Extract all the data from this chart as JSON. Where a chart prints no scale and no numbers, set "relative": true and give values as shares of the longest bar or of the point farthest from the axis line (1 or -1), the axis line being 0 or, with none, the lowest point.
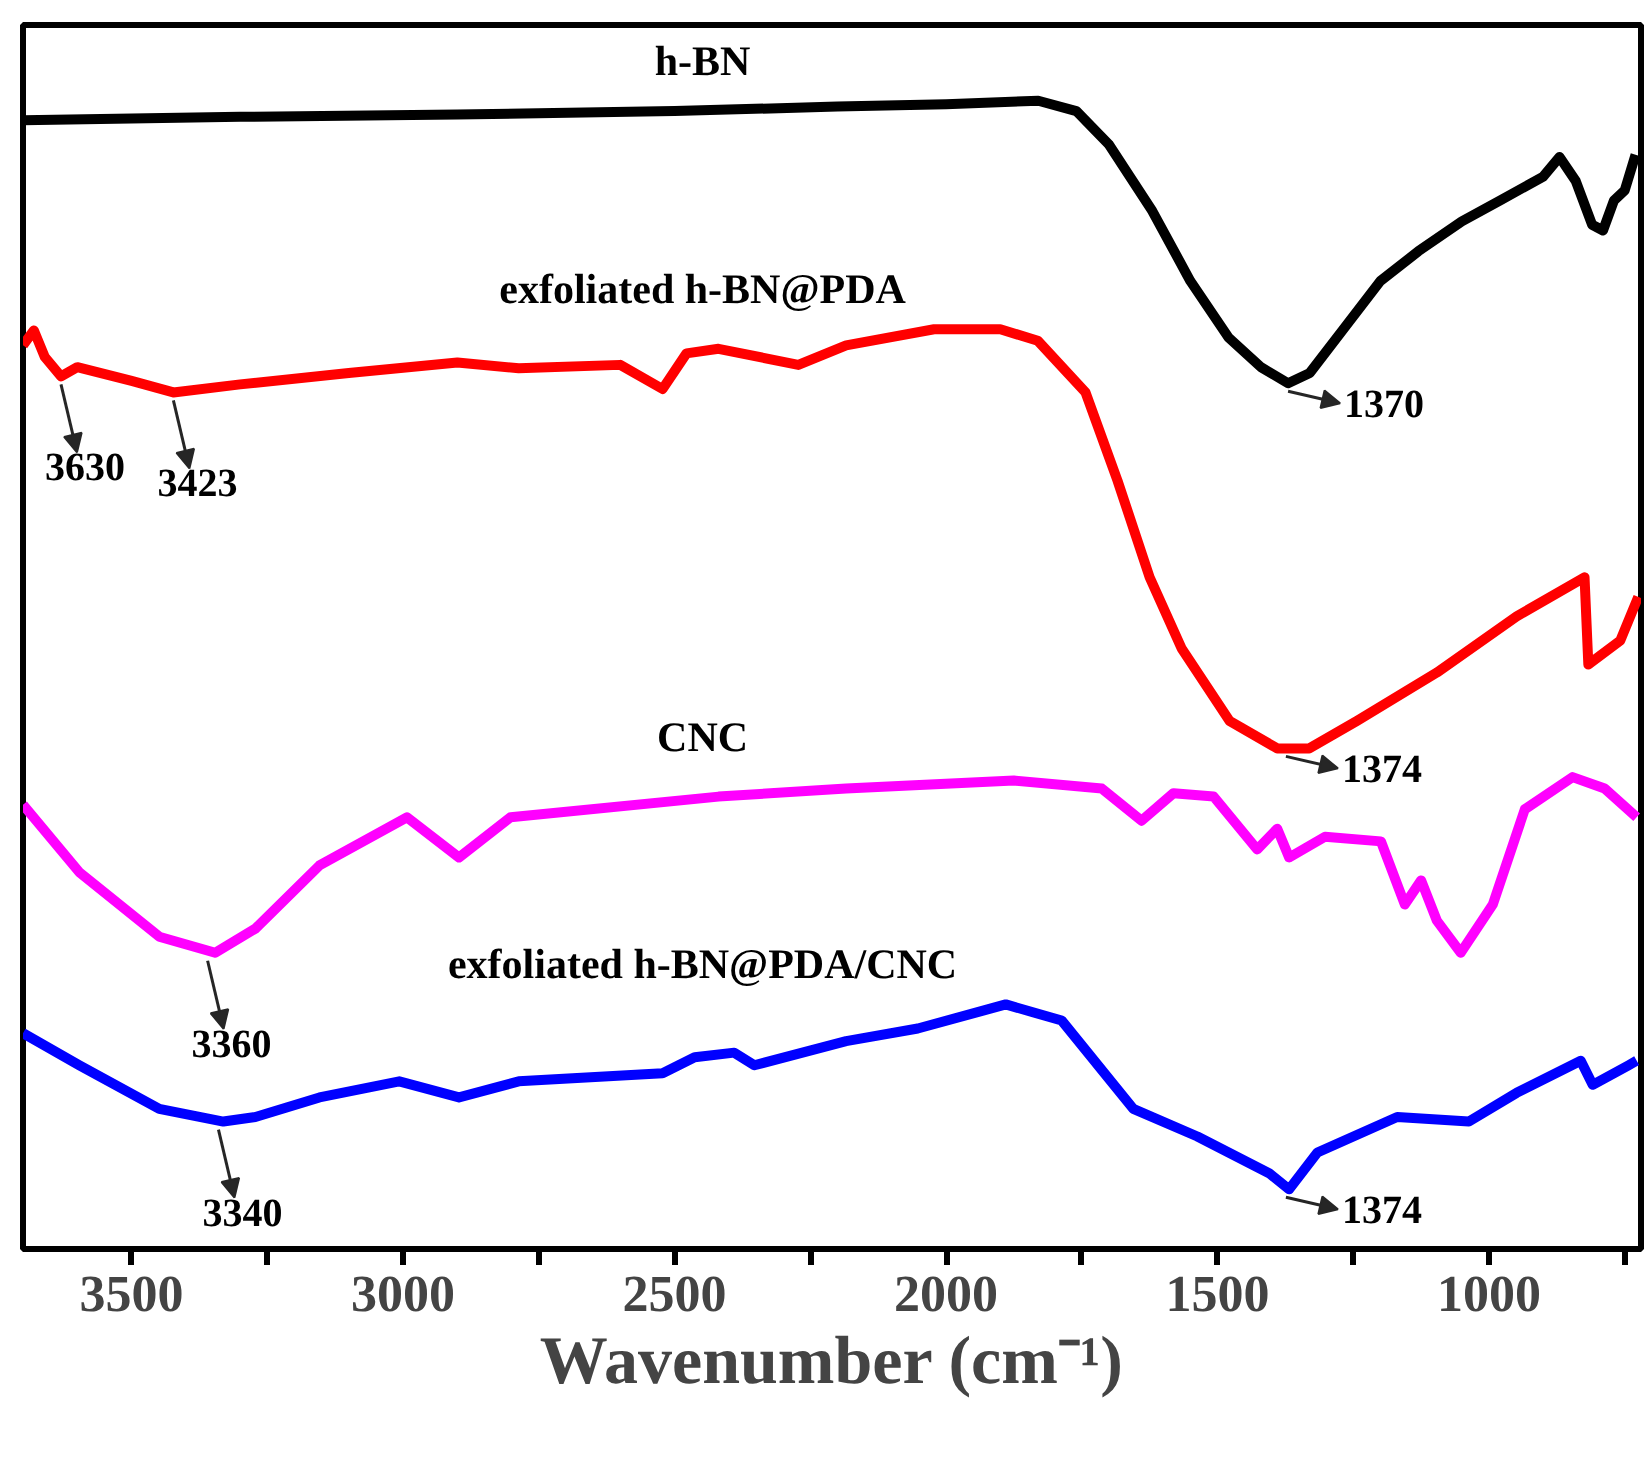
{
  "chart_data": {
    "type": "line",
    "relative": true,
    "xlabel": "Wavenumber (cm⁻¹)",
    "xlim": [
      3700,
      720
    ],
    "xticks": [
      3500,
      {
        "value": 3250,
        "label": null
      },
      3000,
      {
        "value": 2750,
        "label": null
      },
      2500,
      {
        "value": 2250,
        "label": null
      },
      2000,
      {
        "value": 1750,
        "label": null
      },
      1500,
      {
        "value": 1250,
        "label": null
      },
      1000,
      {
        "value": 750,
        "label": null
      }
    ],
    "grid": false,
    "marker": "none",
    "line_style": "solid",
    "series": [
      {
        "name": "h-BN",
        "color": "#000000",
        "x": [
          3700,
          3300,
          2900,
          2500,
          2200,
          2000,
          1830,
          1760,
          1700,
          1620,
          1550,
          1480,
          1420,
          1370,
          1330,
          1270,
          1200,
          1130,
          1050,
          980,
          900,
          870,
          840,
          810,
          790,
          770,
          750,
          730
        ],
        "values": [
          0.983,
          0.986,
          0.988,
          0.991,
          0.995,
          0.997,
          1.0,
          0.991,
          0.962,
          0.904,
          0.843,
          0.794,
          0.768,
          0.754,
          0.763,
          0.8,
          0.843,
          0.869,
          0.895,
          0.913,
          0.934,
          0.951,
          0.93,
          0.892,
          0.887,
          0.913,
          0.922,
          0.953
        ]
      },
      {
        "name": "exfoliated h-BN@PDA",
        "color": "#ff0000",
        "x": [
          3700,
          3680,
          3660,
          3630,
          3600,
          3500,
          3423,
          3300,
          3100,
          2900,
          2787,
          2600,
          2522,
          2478,
          2419,
          2272,
          2184,
          2022,
          1900,
          1831,
          1743,
          1684,
          1625,
          1566,
          1478,
          1390,
          1331,
          1243,
          1096,
          949,
          824,
          817,
          758,
          725
        ],
        "values": [
          0.787,
          0.8,
          0.777,
          0.76,
          0.768,
          0.756,
          0.746,
          0.753,
          0.763,
          0.772,
          0.767,
          0.77,
          0.749,
          0.78,
          0.784,
          0.77,
          0.787,
          0.801,
          0.801,
          0.791,
          0.746,
          0.669,
          0.585,
          0.523,
          0.46,
          0.436,
          0.436,
          0.46,
          0.502,
          0.551,
          0.585,
          0.509,
          0.53,
          0.568
        ]
      },
      {
        "name": "CNC",
        "color": "#ff00ff",
        "x": [
          3700,
          3596,
          3449,
          3346,
          3272,
          3154,
          2993,
          2897,
          2802,
          2419,
          2184,
          1875,
          1713,
          1640,
          1581,
          1507,
          1427,
          1390,
          1368,
          1302,
          1199,
          1155,
          1125,
          1096,
          1052,
          993,
          934,
          846,
          787,
          728
        ],
        "values": [
          0.387,
          0.328,
          0.272,
          0.258,
          0.279,
          0.334,
          0.376,
          0.341,
          0.376,
          0.394,
          0.401,
          0.408,
          0.401,
          0.373,
          0.397,
          0.394,
          0.348,
          0.366,
          0.341,
          0.359,
          0.355,
          0.3,
          0.321,
          0.286,
          0.258,
          0.3,
          0.383,
          0.411,
          0.401,
          0.376
        ]
      },
      {
        "name": "exfoliated h-BN@PDA/CNC",
        "color": "#0000ff",
        "x": [
          3700,
          3596,
          3449,
          3331,
          3272,
          3154,
          3007,
          2897,
          2787,
          2522,
          2463,
          2390,
          2353,
          2184,
          2052,
          1890,
          1787,
          1655,
          1537,
          1405,
          1368,
          1316,
          1169,
          1037,
          949,
          831,
          809,
          743,
          728
        ],
        "values": [
          0.188,
          0.16,
          0.122,
          0.111,
          0.115,
          0.132,
          0.146,
          0.132,
          0.146,
          0.153,
          0.167,
          0.171,
          0.16,
          0.181,
          0.192,
          0.213,
          0.199,
          0.122,
          0.098,
          0.066,
          0.052,
          0.084,
          0.115,
          0.111,
          0.136,
          0.164,
          0.143,
          0.16,
          0.164
        ]
      }
    ],
    "annotations": [
      {
        "text": "3630",
        "x": 3630,
        "y": 0.76
      },
      {
        "text": "3423",
        "x": 3423,
        "y": 0.746
      },
      {
        "text": "1370",
        "x": 1370,
        "y": 0.754
      },
      {
        "text": "1374",
        "x": 1374,
        "y": 0.436
      },
      {
        "text": "3360",
        "x": 3360,
        "y": 0.258
      },
      {
        "text": "3340",
        "x": 3340,
        "y": 0.111
      },
      {
        "text": "1374",
        "x": 1374,
        "y": 0.052
      }
    ]
  }
}
